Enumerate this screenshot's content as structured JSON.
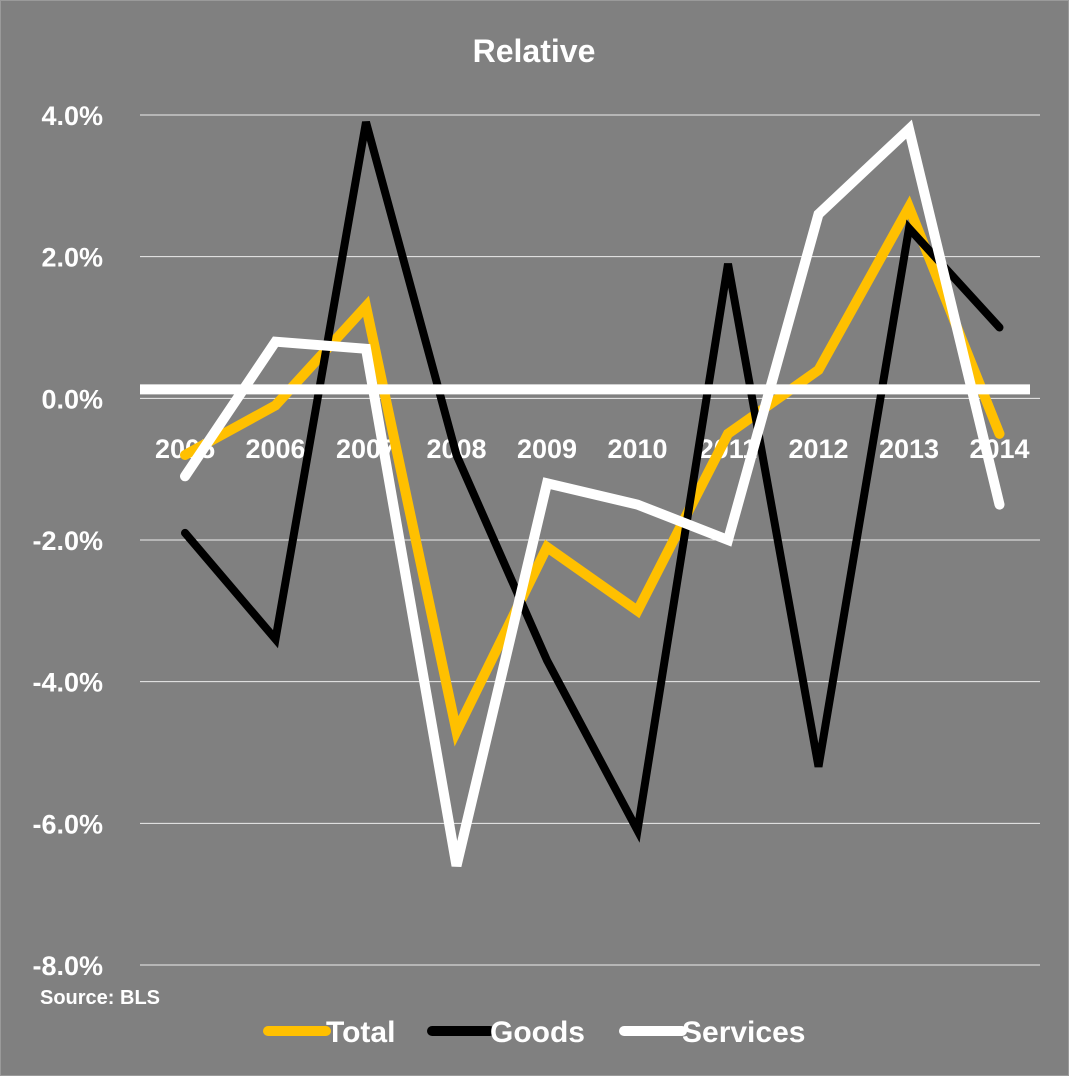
{
  "chart_data": {
    "type": "line",
    "title": "Relative",
    "categories": [
      "2005",
      "2006",
      "2007",
      "2008",
      "2009",
      "2010",
      "2011",
      "2012",
      "2013",
      "2014"
    ],
    "ylim": [
      -8.0,
      4.0
    ],
    "yticks": [
      4.0,
      2.0,
      0.0,
      -2.0,
      -4.0,
      -6.0,
      -8.0
    ],
    "ytick_labels": [
      "4.0%",
      "2.0%",
      "0.0%",
      "-2.0%",
      "-4.0%",
      "-6.0%",
      "-8.0%"
    ],
    "grid": true,
    "legend": "bottom",
    "series": [
      {
        "name": "Total",
        "color": "#FFC000",
        "values": [
          -0.8,
          -0.1,
          1.3,
          -4.7,
          -2.1,
          -3.0,
          -0.5,
          0.4,
          2.7,
          -0.5
        ]
      },
      {
        "name": "Goods",
        "color": "#000000",
        "values": [
          -1.9,
          -3.4,
          3.9,
          -0.8,
          -3.7,
          -6.1,
          1.9,
          -5.2,
          2.4,
          1.0
        ]
      },
      {
        "name": "Services",
        "color": "#FFFFFF",
        "values": [
          -1.1,
          0.8,
          0.7,
          -6.6,
          -1.2,
          -1.5,
          -2.0,
          2.6,
          3.8,
          -1.5
        ]
      }
    ],
    "reference_line": {
      "color": "#FFFFFF"
    },
    "source": "Source: BLS"
  }
}
